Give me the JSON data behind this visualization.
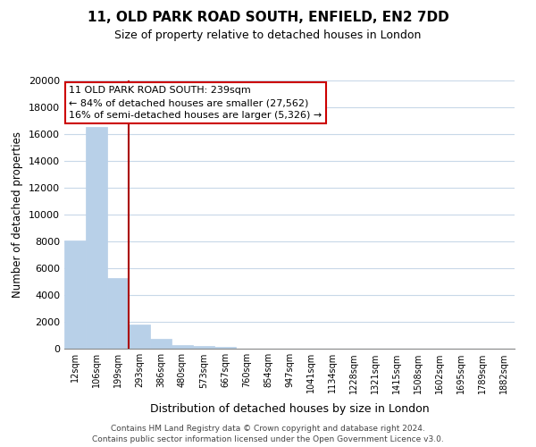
{
  "title": "11, OLD PARK ROAD SOUTH, ENFIELD, EN2 7DD",
  "subtitle": "Size of property relative to detached houses in London",
  "xlabel": "Distribution of detached houses by size in London",
  "ylabel": "Number of detached properties",
  "bar_labels": [
    "12sqm",
    "106sqm",
    "199sqm",
    "293sqm",
    "386sqm",
    "480sqm",
    "573sqm",
    "667sqm",
    "760sqm",
    "854sqm",
    "947sqm",
    "1041sqm",
    "1134sqm",
    "1228sqm",
    "1321sqm",
    "1415sqm",
    "1508sqm",
    "1602sqm",
    "1695sqm",
    "1789sqm",
    "1882sqm"
  ],
  "bar_values": [
    8100,
    16500,
    5300,
    1800,
    750,
    280,
    200,
    150,
    0,
    0,
    0,
    0,
    0,
    0,
    0,
    0,
    0,
    0,
    0,
    0,
    0
  ],
  "bar_color": "#b8d0e8",
  "vline_color": "#aa0000",
  "vline_pos": 2.5,
  "annotation_title": "11 OLD PARK ROAD SOUTH: 239sqm",
  "annotation_line1": "← 84% of detached houses are smaller (27,562)",
  "annotation_line2": "16% of semi-detached houses are larger (5,326) →",
  "annotation_box_color": "#ffffff",
  "annotation_box_edge": "#cc0000",
  "ylim": [
    0,
    20000
  ],
  "yticks": [
    0,
    2000,
    4000,
    6000,
    8000,
    10000,
    12000,
    14000,
    16000,
    18000,
    20000
  ],
  "footer1": "Contains HM Land Registry data © Crown copyright and database right 2024.",
  "footer2": "Contains public sector information licensed under the Open Government Licence v3.0.",
  "background_color": "#ffffff",
  "grid_color": "#c8d8e8",
  "title_fontsize": 11,
  "subtitle_fontsize": 9
}
